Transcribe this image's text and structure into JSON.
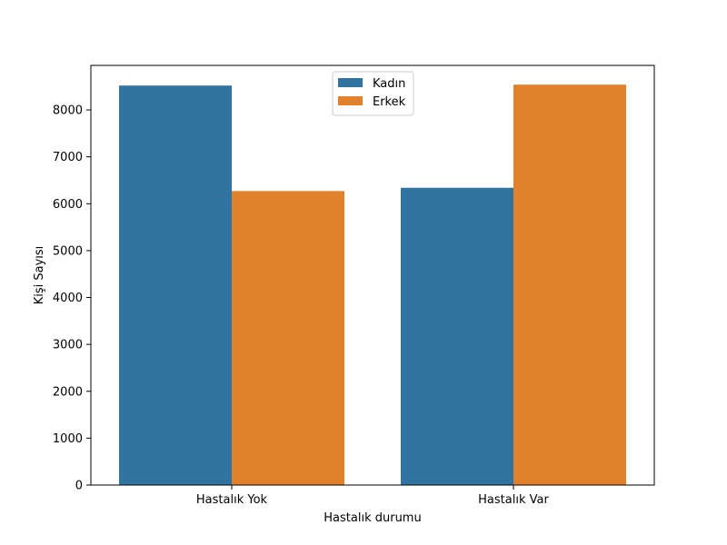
{
  "chart_data": {
    "type": "bar",
    "title": "",
    "xlabel": "Hastalık durumu",
    "ylabel": "Kişi Sayısı",
    "categories": [
      "Hastalık Yok",
      "Hastalık Var"
    ],
    "series": [
      {
        "name": "Kadın",
        "color": "#3274a1",
        "values": [
          8520,
          6340
        ]
      },
      {
        "name": "Erkek",
        "color": "#e1812c",
        "values": [
          6270,
          8540
        ]
      }
    ],
    "ylim": [
      0,
      8950
    ],
    "yticks": [
      0,
      1000,
      2000,
      3000,
      4000,
      5000,
      6000,
      7000,
      8000
    ],
    "grid": false,
    "legend": "top-center"
  }
}
